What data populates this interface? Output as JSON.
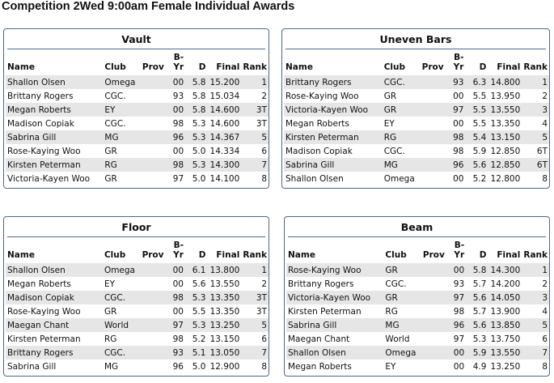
{
  "title": "Competition 2Wed 9:00am Female Individual Awards",
  "panels": [
    {
      "title": "Vault",
      "header": {
        "name": "Name",
        "club": "Club",
        "prov": "Prov",
        "byr": "B-Yr",
        "d": "D",
        "final": "Final",
        "rank": "Rank"
      },
      "rows": [
        {
          "name": "Shallon Olsen",
          "club": "Omega",
          "byr": "00",
          "d": "5.8",
          "final": "15.200",
          "rank": "1"
        },
        {
          "name": "Brittany Rogers",
          "club": "CGC.",
          "byr": "93",
          "d": "5.8",
          "final": "15.034",
          "rank": "2"
        },
        {
          "name": "Megan Roberts",
          "club": "EY",
          "byr": "00",
          "d": "5.8",
          "final": "14.600",
          "rank": "3T"
        },
        {
          "name": "Madison Copiak",
          "club": "CGC.",
          "byr": "98",
          "d": "5.3",
          "final": "14.600",
          "rank": "3T"
        },
        {
          "name": "Sabrina Gill",
          "club": "MG",
          "byr": "96",
          "d": "5.3",
          "final": "14.367",
          "rank": "5"
        },
        {
          "name": "Rose-Kaying Woo",
          "club": "GR",
          "byr": "00",
          "d": "5.0",
          "final": "14.334",
          "rank": "6"
        },
        {
          "name": "Kirsten Peterman",
          "club": "RG",
          "byr": "98",
          "d": "5.3",
          "final": "14.300",
          "rank": "7"
        },
        {
          "name": "Victoria-Kayen Woo",
          "club": "GR",
          "byr": "97",
          "d": "5.0",
          "final": "14.100",
          "rank": "8"
        }
      ]
    },
    {
      "title": "Uneven Bars",
      "header": {
        "name": "Name",
        "club": "Club",
        "prov": "Prov",
        "byr": "B-Yr",
        "d": "D",
        "final": "Final",
        "rank": "Rank"
      },
      "rows": [
        {
          "name": "Brittany Rogers",
          "club": "CGC.",
          "byr": "93",
          "d": "6.3",
          "final": "14.800",
          "rank": "1"
        },
        {
          "name": "Rose-Kaying Woo",
          "club": "GR",
          "byr": "00",
          "d": "5.5",
          "final": "13.950",
          "rank": "2"
        },
        {
          "name": "Victoria-Kayen Woo",
          "club": "GR",
          "byr": "97",
          "d": "5.5",
          "final": "13.550",
          "rank": "3"
        },
        {
          "name": "Megan Roberts",
          "club": "EY",
          "byr": "00",
          "d": "5.5",
          "final": "13.350",
          "rank": "4"
        },
        {
          "name": "Kirsten Peterman",
          "club": "RG",
          "byr": "98",
          "d": "5.4",
          "final": "13.150",
          "rank": "5"
        },
        {
          "name": "Madison Copiak",
          "club": "CGC.",
          "byr": "98",
          "d": "5.9",
          "final": "12.850",
          "rank": "6T"
        },
        {
          "name": "Sabrina Gill",
          "club": "MG",
          "byr": "96",
          "d": "5.6",
          "final": "12.850",
          "rank": "6T"
        },
        {
          "name": "Shallon Olsen",
          "club": "Omega",
          "byr": "00",
          "d": "5.2",
          "final": "12.800",
          "rank": "8"
        }
      ]
    },
    {
      "title": "Floor",
      "header": {
        "name": "Name",
        "club": "Club",
        "prov": "Prov",
        "byr": "B-Yr",
        "d": "D",
        "final": "Final",
        "rank": "Rank"
      },
      "rows": [
        {
          "name": "Shallon Olsen",
          "club": "Omega",
          "byr": "00",
          "d": "6.1",
          "final": "13.800",
          "rank": "1"
        },
        {
          "name": "Megan Roberts",
          "club": "EY",
          "byr": "00",
          "d": "5.6",
          "final": "13.550",
          "rank": "2"
        },
        {
          "name": "Madison Copiak",
          "club": "CGC.",
          "byr": "98",
          "d": "5.3",
          "final": "13.350",
          "rank": "3T"
        },
        {
          "name": "Rose-Kaying Woo",
          "club": "GR",
          "byr": "00",
          "d": "5.5",
          "final": "13.350",
          "rank": "3T"
        },
        {
          "name": "Maegan Chant",
          "club": "World",
          "byr": "97",
          "d": "5.3",
          "final": "13.250",
          "rank": "5"
        },
        {
          "name": "Kirsten Peterman",
          "club": "RG",
          "byr": "98",
          "d": "5.2",
          "final": "13.150",
          "rank": "6"
        },
        {
          "name": "Brittany Rogers",
          "club": "CGC.",
          "byr": "93",
          "d": "5.1",
          "final": "13.050",
          "rank": "7"
        },
        {
          "name": "Sabrina Gill",
          "club": "MG",
          "byr": "96",
          "d": "5.0",
          "final": "12.900",
          "rank": "8"
        }
      ]
    },
    {
      "title": "Beam",
      "header": {
        "name": "Name",
        "club": "Club",
        "prov": "Prov",
        "byr": "B-Yr",
        "d": "D",
        "final": "Final",
        "rank": "Rank"
      },
      "rows": [
        {
          "name": "Rose-Kaying Woo",
          "club": "GR",
          "byr": "00",
          "d": "5.8",
          "final": "14.300",
          "rank": "1"
        },
        {
          "name": "Brittany Rogers",
          "club": "CGC.",
          "byr": "93",
          "d": "5.7",
          "final": "14.200",
          "rank": "2"
        },
        {
          "name": "Victoria-Kayen Woo",
          "club": "GR",
          "byr": "97",
          "d": "5.6",
          "final": "14.050",
          "rank": "3"
        },
        {
          "name": "Kirsten Peterman",
          "club": "RG",
          "byr": "98",
          "d": "5.7",
          "final": "13.900",
          "rank": "4"
        },
        {
          "name": "Sabrina Gill",
          "club": "MG",
          "byr": "96",
          "d": "5.6",
          "final": "13.850",
          "rank": "5"
        },
        {
          "name": "Maegan Chant",
          "club": "World",
          "byr": "97",
          "d": "5.3",
          "final": "13.750",
          "rank": "6"
        },
        {
          "name": "Shallon Olsen",
          "club": "Omega",
          "byr": "00",
          "d": "5.9",
          "final": "13.550",
          "rank": "7"
        },
        {
          "name": "Megan Roberts",
          "club": "EY",
          "byr": "00",
          "d": "4.9",
          "final": "13.250",
          "rank": "8"
        }
      ]
    }
  ]
}
